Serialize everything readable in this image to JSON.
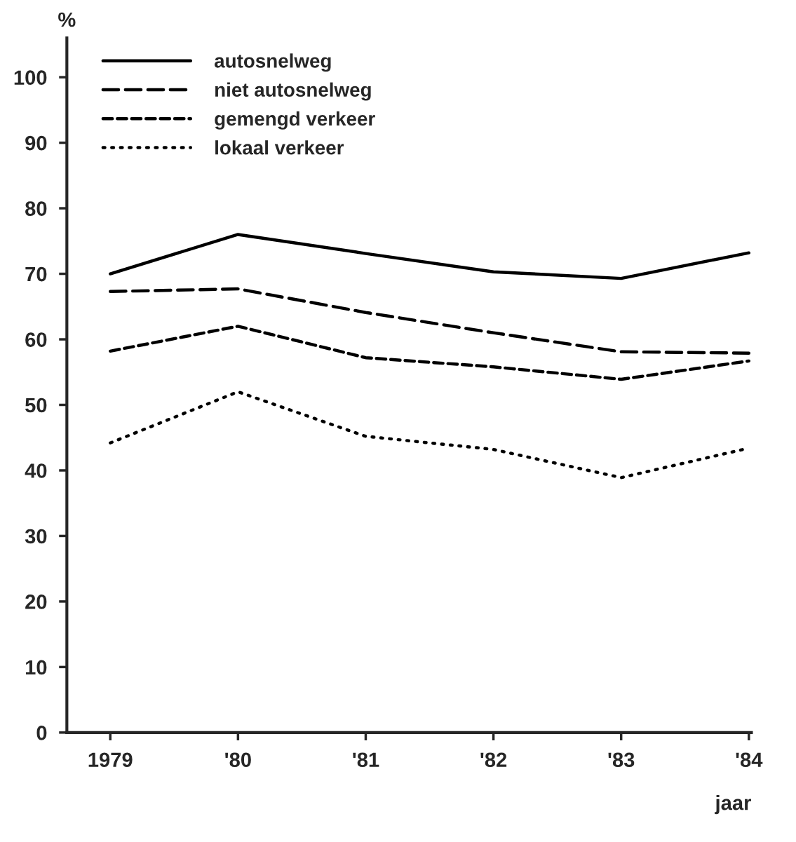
{
  "chart_data": {
    "type": "line",
    "ylabel": "%",
    "xlabel": "jaar",
    "x": [
      1979,
      1980,
      1981,
      1982,
      1983,
      1984
    ],
    "xlim": [
      1978.66,
      1984.02
    ],
    "xticks": [
      1979,
      {
        "value": 1980,
        "label": "'80"
      },
      {
        "value": 1981,
        "label": "'81"
      },
      {
        "value": 1982,
        "label": "'82"
      },
      {
        "value": 1983,
        "label": "'83"
      },
      {
        "value": 1984,
        "label": "'84"
      }
    ],
    "ylim": [
      0,
      106
    ],
    "yticks": [
      0,
      10,
      20,
      30,
      40,
      50,
      60,
      70,
      80,
      90,
      100
    ],
    "grid": false,
    "legend": "top left",
    "marker": "none",
    "series": [
      {
        "name": "autosnelweg",
        "color": "#000000",
        "line_style": "solid",
        "values": [
          70,
          76,
          73.1,
          70.3,
          69.3,
          73.2
        ]
      },
      {
        "name": "niet autosnelweg",
        "color": "#000000",
        "line_style": "long_dashed",
        "values": [
          67.3,
          67.7,
          64.1,
          61,
          58.1,
          57.9
        ]
      },
      {
        "name": "gemengd verkeer",
        "color": "#000000",
        "line_style": "dashed",
        "values": [
          58.2,
          62,
          57.2,
          55.8,
          53.9,
          56.7
        ]
      },
      {
        "name": "lokaal verkeer",
        "color": "#000000",
        "line_style": "dotted",
        "values": [
          44.2,
          52,
          45.2,
          43.2,
          38.9,
          43.4
        ]
      }
    ]
  }
}
